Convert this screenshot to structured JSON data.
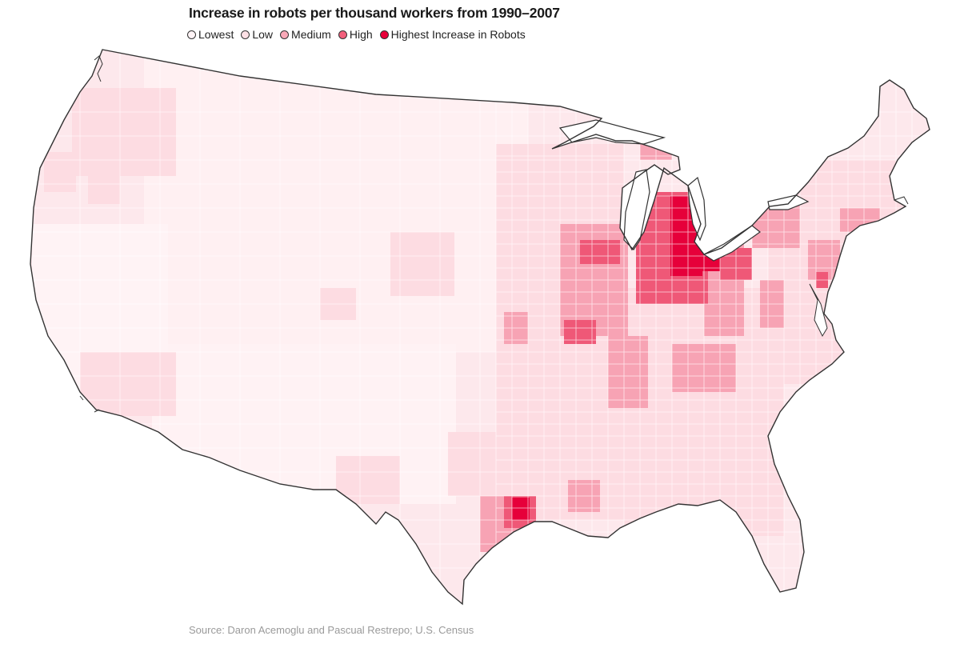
{
  "title": "Increase in robots per thousand workers from 1990–2007",
  "legend": [
    {
      "label": "Lowest",
      "color": "#fff4f6"
    },
    {
      "label": "Low",
      "color": "#fde0e5"
    },
    {
      "label": "Medium",
      "color": "#f9a9b8"
    },
    {
      "label": "High",
      "color": "#f25f7c"
    },
    {
      "label": "Highest Increase in Robots",
      "color": "#e8003a"
    }
  ],
  "source": "Source: Daron Acemoglu and Pascual Restrepo; U.S. Census",
  "map_background": "#fde8ec",
  "outline_color": "#333333"
}
